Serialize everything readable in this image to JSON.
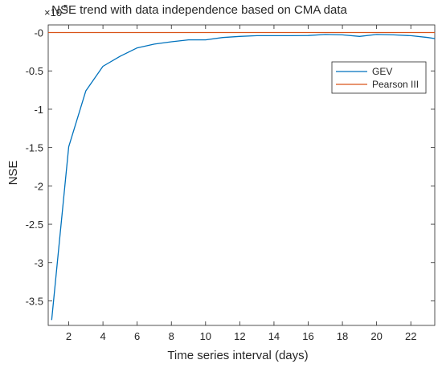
{
  "chart_data": {
    "type": "line",
    "title": "NSE trend with data independence based on CMA data",
    "exponent_label": "×10",
    "exponent_power": "5",
    "xlabel": "Time series interval  (days)",
    "ylabel": "NSE",
    "xlim": [
      0.8,
      23.4
    ],
    "ylim": [
      -3.82,
      0.1
    ],
    "xticks": [
      2,
      4,
      6,
      8,
      10,
      12,
      14,
      16,
      18,
      20,
      22
    ],
    "xtick_labels": [
      "2",
      "4",
      "6",
      "8",
      "10",
      "12",
      "14",
      "16",
      "18",
      "20",
      "22"
    ],
    "yticks": [
      0,
      -0.5,
      -1,
      -1.5,
      -2,
      -2.5,
      -3,
      -3.5
    ],
    "ytick_labels": [
      "-0",
      "-0.5",
      "-1",
      "-1.5",
      "-2",
      "-2.5",
      "-3",
      "-3.5"
    ],
    "grid": false,
    "legend_position": "top-right",
    "series": [
      {
        "name": "GEV",
        "color": "#0072BD",
        "x": [
          1,
          2,
          3,
          4,
          5,
          6,
          7,
          8,
          9,
          10,
          11,
          12,
          13,
          14,
          15,
          16,
          17,
          18,
          19,
          20,
          21,
          22,
          23,
          23.4
        ],
        "y": [
          -3.75,
          -1.49,
          -0.76,
          -0.44,
          -0.31,
          -0.2,
          -0.15,
          -0.12,
          -0.095,
          -0.095,
          -0.065,
          -0.05,
          -0.04,
          -0.04,
          -0.04,
          -0.038,
          -0.025,
          -0.03,
          -0.05,
          -0.025,
          -0.03,
          -0.04,
          -0.065,
          -0.078
        ]
      },
      {
        "name": "Pearson III",
        "color": "#D95319",
        "x": [
          0.8,
          23.4
        ],
        "y": [
          0,
          0
        ]
      }
    ]
  }
}
